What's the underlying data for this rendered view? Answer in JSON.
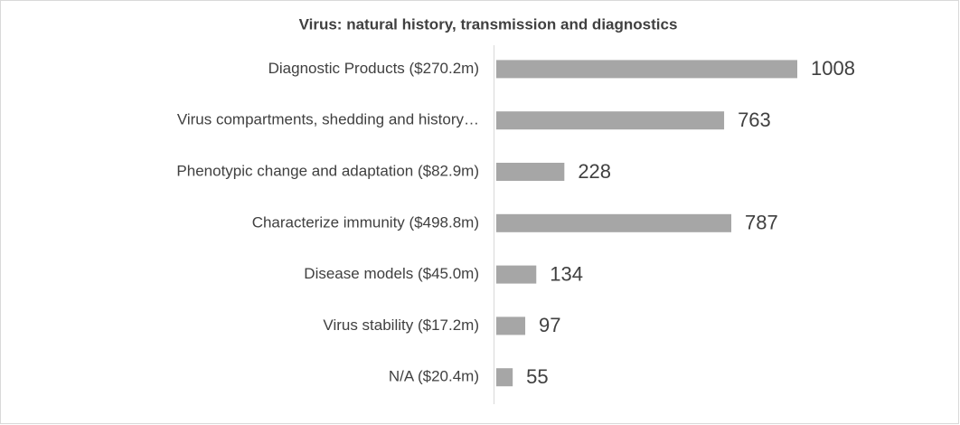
{
  "chart_data": {
    "type": "bar",
    "orientation": "horizontal",
    "title": "Virus: natural history, transmission and diagnostics",
    "categories": [
      "Diagnostic Products ($270.2m)",
      "Virus compartments, shedding and history…",
      "Phenotypic change and adaptation ($82.9m)",
      "Characterize immunity ($498.8m)",
      "Disease models ($45.0m)",
      "Virus stability ($17.2m)",
      "N/A ($20.4m)"
    ],
    "values": [
      1008,
      763,
      228,
      787,
      134,
      97,
      55
    ],
    "color": "#a6a6a6"
  }
}
